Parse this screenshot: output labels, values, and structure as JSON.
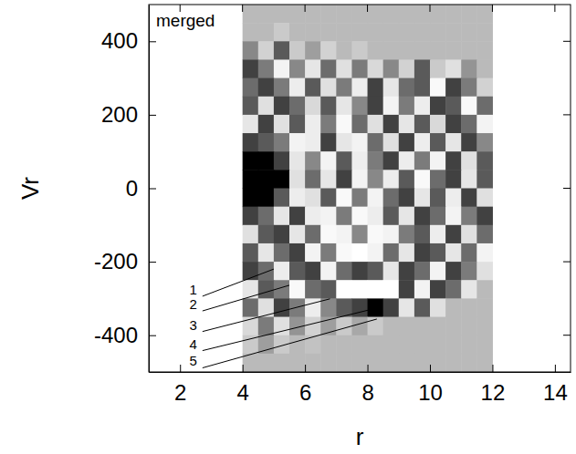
{
  "chart_data": {
    "type": "heatmap",
    "title": "merged",
    "x_label": "r",
    "y_label": "Vr",
    "xlim": [
      1,
      14.5
    ],
    "ylim": [
      -500,
      500
    ],
    "xticks": [
      2,
      4,
      6,
      8,
      10,
      12,
      14
    ],
    "yticks": [
      -400,
      -200,
      0,
      200,
      400
    ],
    "zlim": [
      -1,
      1
    ],
    "x": [
      4.25,
      4.75,
      5.25,
      5.75,
      6.25,
      6.75,
      7.25,
      7.75,
      8.25,
      8.75,
      9.25,
      9.75,
      10.25,
      10.75,
      11.25,
      11.75
    ],
    "y": [
      475,
      425,
      375,
      325,
      275,
      225,
      175,
      125,
      75,
      25,
      -25,
      -75,
      -125,
      -175,
      -225,
      -275,
      -325,
      -375,
      -425,
      -475
    ],
    "values": [
      [
        0,
        0,
        0,
        0,
        0,
        0,
        0,
        0,
        0,
        0,
        0,
        0,
        0,
        0,
        0,
        0
      ],
      [
        0,
        0,
        0.2,
        0,
        0,
        0,
        0,
        0,
        0,
        0,
        0,
        0,
        0,
        0,
        0,
        0
      ],
      [
        -0.5,
        0.3,
        -0.8,
        0.2,
        -0.3,
        0.3,
        0,
        0.2,
        0,
        0,
        0,
        0,
        0,
        0,
        0,
        0
      ],
      [
        -0.9,
        -0.6,
        0.8,
        -0.5,
        0.6,
        -0.7,
        0.5,
        -0.6,
        0.4,
        -0.5,
        0.3,
        -0.8,
        0.2,
        0.5,
        -0.4,
        0
      ],
      [
        -0.7,
        -0.9,
        -0.6,
        0.7,
        -0.8,
        0.5,
        -0.6,
        0.7,
        -0.9,
        0.6,
        -0.7,
        -0.8,
        0.9,
        -0.9,
        -0.6,
        0.3
      ],
      [
        -0.8,
        0.5,
        -0.9,
        -0.7,
        0.4,
        -0.8,
        0.6,
        -0.5,
        -0.9,
        0.8,
        -0.6,
        0.7,
        -0.9,
        -0.8,
        0.9,
        -0.7
      ],
      [
        0.6,
        -0.9,
        0.5,
        -0.8,
        0.7,
        -0.6,
        0.9,
        -0.7,
        0.5,
        -0.9,
        0.6,
        -0.8,
        0.4,
        -0.9,
        -0.7,
        0.8
      ],
      [
        -0.9,
        -0.8,
        -0.6,
        0.8,
        0.7,
        -0.9,
        0.6,
        0.8,
        -0.7,
        0.5,
        -0.9,
        0.7,
        -0.8,
        0.6,
        -0.9,
        -0.5
      ],
      [
        -1,
        -1,
        -0.9,
        0.6,
        -0.5,
        0.8,
        -0.8,
        0.7,
        -0.6,
        -0.9,
        0.7,
        -0.6,
        0.8,
        -0.9,
        0.5,
        -0.8
      ],
      [
        -1,
        -1,
        -1,
        0.5,
        -0.7,
        0.6,
        -0.9,
        0.8,
        -0.5,
        0.7,
        -0.8,
        0.9,
        -0.7,
        -0.9,
        0.6,
        -0.8
      ],
      [
        -1,
        -1,
        -0.8,
        0.7,
        0.5,
        -0.8,
        0.9,
        -0.6,
        0.8,
        -0.7,
        -0.9,
        0.6,
        -0.8,
        0.7,
        -0.9,
        0.5
      ],
      [
        -0.9,
        -0.7,
        0.6,
        -0.9,
        0.7,
        0.8,
        -0.6,
        0.9,
        0.7,
        -0.8,
        0.6,
        -0.9,
        -0.7,
        0.8,
        -0.6,
        -0.9
      ],
      [
        0.5,
        -0.8,
        -0.9,
        0.6,
        -0.7,
        0.9,
        0.8,
        -0.5,
        0.9,
        0.8,
        -0.6,
        -0.8,
        0.7,
        -0.9,
        0.5,
        -0.7
      ],
      [
        -0.8,
        0.6,
        -0.7,
        -0.9,
        0.8,
        -0.6,
        0.9,
        1,
        0.8,
        -0.7,
        0.6,
        -0.9,
        -0.8,
        0.6,
        -0.7,
        0.8
      ],
      [
        -0.9,
        -0.7,
        0.7,
        -0.8,
        -0.9,
        0.8,
        -0.7,
        -0.9,
        -0.8,
        0.6,
        -0.9,
        -0.7,
        0.8,
        -0.9,
        -0.6,
        0.5
      ],
      [
        0.6,
        -0.8,
        -0.6,
        0.9,
        -0.7,
        -0.8,
        1,
        1,
        1,
        1,
        -0.9,
        0.8,
        -0.9,
        -0.7,
        0.6,
        0
      ],
      [
        -0.7,
        0.5,
        -0.9,
        -0.6,
        0.7,
        -0.5,
        -0.8,
        -0.9,
        -1,
        -0.9,
        0.6,
        -0.8,
        0.5,
        0,
        0,
        0
      ],
      [
        0.4,
        -0.6,
        0.5,
        -0.4,
        0.3,
        -0.3,
        0.2,
        -0.2,
        0.2,
        0,
        0,
        0,
        0,
        0,
        0,
        0
      ],
      [
        0.2,
        -0.3,
        0.2,
        0,
        0.1,
        0,
        0,
        0,
        0,
        0,
        0,
        0,
        0,
        0,
        0,
        0
      ],
      [
        0,
        0,
        0,
        0,
        0,
        0,
        0,
        0,
        0,
        0,
        0,
        0,
        0,
        0,
        0,
        0
      ]
    ],
    "annotations": [
      {
        "text": "1",
        "x": 2.3,
        "y": -279,
        "x_end": 5.0,
        "y_end": -220
      },
      {
        "text": "2",
        "x": 2.3,
        "y": -319,
        "x_end": 5.5,
        "y_end": -264
      },
      {
        "text": "3",
        "x": 2.3,
        "y": -375,
        "x_end": 6.8,
        "y_end": -301
      },
      {
        "text": "4",
        "x": 2.3,
        "y": -427,
        "x_end": 8.3,
        "y_end": -326
      },
      {
        "text": "5",
        "x": 2.3,
        "y": -474,
        "x_end": 8.3,
        "y_end": -356
      }
    ]
  }
}
